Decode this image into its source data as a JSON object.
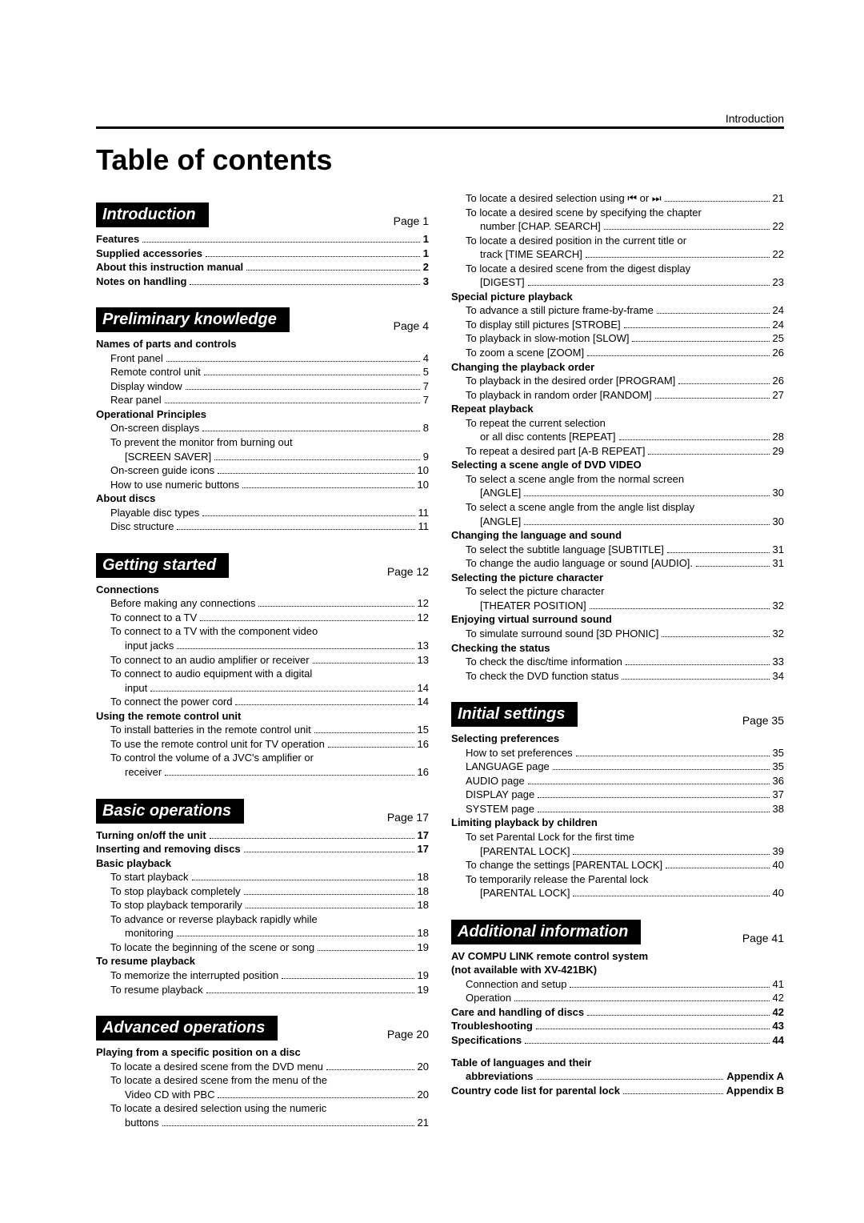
{
  "header_label": "Introduction",
  "title": "Table of contents",
  "left": [
    {
      "type": "section",
      "label": "Introduction",
      "page": "Page 1"
    },
    {
      "type": "line",
      "bold": true,
      "indent": 0,
      "text": "Features",
      "pg": "1"
    },
    {
      "type": "line",
      "bold": true,
      "indent": 0,
      "text": "Supplied accessories",
      "pg": "1"
    },
    {
      "type": "line",
      "bold": true,
      "indent": 0,
      "text": "About this instruction manual",
      "pg": "2"
    },
    {
      "type": "line",
      "bold": true,
      "indent": 0,
      "text": "Notes on handling",
      "pg": "3"
    },
    {
      "type": "gap"
    },
    {
      "type": "section",
      "label": "Preliminary knowledge",
      "page": "Page 4"
    },
    {
      "type": "plain",
      "bold": true,
      "indent": 0,
      "text": "Names of parts and controls"
    },
    {
      "type": "line",
      "indent": 1,
      "text": "Front panel",
      "pg": "4"
    },
    {
      "type": "line",
      "indent": 1,
      "text": "Remote control unit",
      "pg": "5"
    },
    {
      "type": "line",
      "indent": 1,
      "text": "Display window",
      "pg": "7"
    },
    {
      "type": "line",
      "indent": 1,
      "text": "Rear panel",
      "pg": "7"
    },
    {
      "type": "plain",
      "bold": true,
      "indent": 0,
      "text": "Operational Principles"
    },
    {
      "type": "line",
      "indent": 1,
      "text": "On-screen displays",
      "pg": "8"
    },
    {
      "type": "plain",
      "indent": 1,
      "text": "To prevent the monitor from burning out"
    },
    {
      "type": "line",
      "indent": 2,
      "text": "[SCREEN SAVER]",
      "pg": "9"
    },
    {
      "type": "line",
      "indent": 1,
      "text": "On-screen guide icons",
      "pg": "10"
    },
    {
      "type": "line",
      "indent": 1,
      "text": "How to use numeric buttons",
      "pg": "10"
    },
    {
      "type": "plain",
      "bold": true,
      "indent": 0,
      "text": "About discs"
    },
    {
      "type": "line",
      "indent": 1,
      "text": "Playable disc types",
      "pg": "11"
    },
    {
      "type": "line",
      "indent": 1,
      "text": "Disc structure",
      "pg": "11"
    },
    {
      "type": "gap"
    },
    {
      "type": "section",
      "label": "Getting started",
      "page": "Page 12"
    },
    {
      "type": "plain",
      "bold": true,
      "indent": 0,
      "text": "Connections"
    },
    {
      "type": "line",
      "indent": 1,
      "text": "Before making any connections",
      "pg": "12"
    },
    {
      "type": "line",
      "indent": 1,
      "text": "To connect to a TV",
      "pg": "12"
    },
    {
      "type": "plain",
      "indent": 1,
      "text": "To connect to a TV with the component video"
    },
    {
      "type": "line",
      "indent": 2,
      "text": "input jacks",
      "pg": "13"
    },
    {
      "type": "line",
      "indent": 1,
      "text": "To connect to an audio amplifier or receiver",
      "pg": "13"
    },
    {
      "type": "plain",
      "indent": 1,
      "text": "To connect to audio equipment with a digital"
    },
    {
      "type": "line",
      "indent": 2,
      "text": "input",
      "pg": "14"
    },
    {
      "type": "line",
      "indent": 1,
      "text": "To connect the power cord",
      "pg": "14"
    },
    {
      "type": "plain",
      "bold": true,
      "indent": 0,
      "text": "Using the remote control unit"
    },
    {
      "type": "line",
      "indent": 1,
      "text": "To install batteries in the remote control unit",
      "pg": "15"
    },
    {
      "type": "line",
      "indent": 1,
      "text": "To use the remote control unit for TV operation",
      "pg": "16"
    },
    {
      "type": "plain",
      "indent": 1,
      "text": "To control the volume of a JVC's amplifier or"
    },
    {
      "type": "line",
      "indent": 2,
      "text": "receiver",
      "pg": "16"
    },
    {
      "type": "gap"
    },
    {
      "type": "section",
      "label": "Basic operations",
      "page": "Page 17"
    },
    {
      "type": "line",
      "bold": true,
      "indent": 0,
      "text": "Turning on/off the unit",
      "pg": "17"
    },
    {
      "type": "line",
      "bold": true,
      "indent": 0,
      "text": "Inserting and removing discs",
      "pg": "17"
    },
    {
      "type": "plain",
      "bold": true,
      "indent": 0,
      "text": "Basic playback"
    },
    {
      "type": "line",
      "indent": 1,
      "text": "To start playback",
      "pg": "18"
    },
    {
      "type": "line",
      "indent": 1,
      "text": "To stop playback completely",
      "pg": "18"
    },
    {
      "type": "line",
      "indent": 1,
      "text": "To stop playback temporarily",
      "pg": "18"
    },
    {
      "type": "plain",
      "indent": 1,
      "text": "To advance or reverse playback rapidly while"
    },
    {
      "type": "line",
      "indent": 2,
      "text": "monitoring",
      "pg": "18"
    },
    {
      "type": "line",
      "indent": 1,
      "text": "To locate the beginning of the scene or song",
      "pg": "19"
    },
    {
      "type": "plain",
      "bold": true,
      "indent": 0,
      "text": "To resume playback"
    },
    {
      "type": "line",
      "indent": 1,
      "text": "To memorize the interrupted position",
      "pg": "19"
    },
    {
      "type": "line",
      "indent": 1,
      "text": "To resume playback",
      "pg": "19"
    },
    {
      "type": "gap"
    },
    {
      "type": "section",
      "label": "Advanced operations",
      "page": "Page 20"
    },
    {
      "type": "plain",
      "bold": true,
      "indent": 0,
      "text": "Playing from a specific position on a disc"
    },
    {
      "type": "line",
      "indent": 1,
      "text": "To locate a desired scene from the DVD menu",
      "pg": "20"
    },
    {
      "type": "plain",
      "indent": 1,
      "text": "To locate a desired scene from the menu of the"
    },
    {
      "type": "line",
      "indent": 2,
      "text": "Video CD with PBC",
      "pg": "20"
    },
    {
      "type": "plain",
      "indent": 1,
      "text": "To locate a desired selection using the numeric"
    },
    {
      "type": "line",
      "indent": 2,
      "text": "buttons",
      "pg": "21"
    }
  ],
  "right": [
    {
      "type": "line",
      "indent": 1,
      "text": "To locate a desired selection using ⏮ or ⏭",
      "pg": "21"
    },
    {
      "type": "plain",
      "indent": 1,
      "text": "To locate a desired scene by specifying the chapter"
    },
    {
      "type": "line",
      "indent": 2,
      "text": "number [CHAP. SEARCH]",
      "pg": "22"
    },
    {
      "type": "plain",
      "indent": 1,
      "text": "To locate a desired position in the current title or"
    },
    {
      "type": "line",
      "indent": 2,
      "text": "track [TIME SEARCH]",
      "pg": "22"
    },
    {
      "type": "plain",
      "indent": 1,
      "text": "To locate a desired scene from the digest display"
    },
    {
      "type": "line",
      "indent": 2,
      "text": "[DIGEST]",
      "pg": "23"
    },
    {
      "type": "plain",
      "bold": true,
      "indent": 0,
      "text": "Special picture playback"
    },
    {
      "type": "line",
      "indent": 1,
      "text": "To advance a still picture frame-by-frame",
      "pg": "24"
    },
    {
      "type": "line",
      "indent": 1,
      "text": "To display still pictures [STROBE]",
      "pg": "24"
    },
    {
      "type": "line",
      "indent": 1,
      "text": "To playback in slow-motion [SLOW]",
      "pg": "25"
    },
    {
      "type": "line",
      "indent": 1,
      "text": "To zoom a scene [ZOOM]",
      "pg": "26"
    },
    {
      "type": "plain",
      "bold": true,
      "indent": 0,
      "text": "Changing the playback order"
    },
    {
      "type": "line",
      "indent": 1,
      "text": "To playback in the desired order [PROGRAM]",
      "pg": "26"
    },
    {
      "type": "line",
      "indent": 1,
      "text": "To playback in random order [RANDOM]",
      "pg": "27"
    },
    {
      "type": "plain",
      "bold": true,
      "indent": 0,
      "text": "Repeat playback"
    },
    {
      "type": "plain",
      "indent": 1,
      "text": "To repeat the current selection"
    },
    {
      "type": "line",
      "indent": 2,
      "text": "or all disc contents [REPEAT]",
      "pg": "28"
    },
    {
      "type": "line",
      "indent": 1,
      "text": "To repeat a desired part [A-B REPEAT]",
      "pg": "29"
    },
    {
      "type": "plain",
      "bold": true,
      "indent": 0,
      "text": "Selecting a scene angle of DVD VIDEO"
    },
    {
      "type": "plain",
      "indent": 1,
      "text": "To select a scene angle from the normal screen"
    },
    {
      "type": "line",
      "indent": 2,
      "text": "[ANGLE]",
      "pg": "30"
    },
    {
      "type": "plain",
      "indent": 1,
      "text": "To select a scene angle from the angle list display"
    },
    {
      "type": "line",
      "indent": 2,
      "text": "[ANGLE]",
      "pg": "30"
    },
    {
      "type": "plain",
      "bold": true,
      "indent": 0,
      "text": "Changing the language and sound"
    },
    {
      "type": "line",
      "indent": 1,
      "text": "To select the subtitle language [SUBTITLE]",
      "pg": "31"
    },
    {
      "type": "line",
      "indent": 1,
      "text": "To change the audio language or sound [AUDIO].",
      "pg": "31"
    },
    {
      "type": "plain",
      "bold": true,
      "indent": 0,
      "text": "Selecting the picture character"
    },
    {
      "type": "plain",
      "indent": 1,
      "text": "To select the picture character"
    },
    {
      "type": "line",
      "indent": 2,
      "text": "[THEATER POSITION]",
      "pg": "32"
    },
    {
      "type": "plain",
      "bold": true,
      "indent": 0,
      "text": "Enjoying virtual surround sound"
    },
    {
      "type": "line",
      "indent": 1,
      "text": "To simulate surround sound [3D PHONIC]",
      "pg": "32"
    },
    {
      "type": "plain",
      "bold": true,
      "indent": 0,
      "text": "Checking the status"
    },
    {
      "type": "line",
      "indent": 1,
      "text": "To check the disc/time information",
      "pg": "33"
    },
    {
      "type": "line",
      "indent": 1,
      "text": "To check the DVD function status",
      "pg": "34"
    },
    {
      "type": "gap"
    },
    {
      "type": "section",
      "label": "Initial settings",
      "page": "Page 35"
    },
    {
      "type": "plain",
      "bold": true,
      "indent": 0,
      "text": "Selecting preferences"
    },
    {
      "type": "line",
      "indent": 1,
      "text": "How to set preferences",
      "pg": "35"
    },
    {
      "type": "line",
      "indent": 1,
      "text": "LANGUAGE page",
      "pg": "35"
    },
    {
      "type": "line",
      "indent": 1,
      "text": "AUDIO page",
      "pg": "36"
    },
    {
      "type": "line",
      "indent": 1,
      "text": "DISPLAY page",
      "pg": "37"
    },
    {
      "type": "line",
      "indent": 1,
      "text": "SYSTEM page",
      "pg": "38"
    },
    {
      "type": "plain",
      "bold": true,
      "indent": 0,
      "text": "Limiting playback by children"
    },
    {
      "type": "plain",
      "indent": 1,
      "text": "To set Parental Lock for the first time"
    },
    {
      "type": "line",
      "indent": 2,
      "text": "[PARENTAL LOCK]",
      "pg": "39"
    },
    {
      "type": "line",
      "indent": 1,
      "text": "To change the settings [PARENTAL LOCK]",
      "pg": "40"
    },
    {
      "type": "plain",
      "indent": 1,
      "text": "To temporarily release the Parental lock"
    },
    {
      "type": "line",
      "indent": 2,
      "text": "[PARENTAL LOCK]",
      "pg": "40"
    },
    {
      "type": "gap"
    },
    {
      "type": "section",
      "label": "Additional information",
      "page": "Page 41"
    },
    {
      "type": "plain",
      "bold": true,
      "indent": 0,
      "text": "AV COMPU LINK remote control system"
    },
    {
      "type": "plain",
      "bold": true,
      "indent": 0,
      "text": "(not available with XV-421BK)"
    },
    {
      "type": "line",
      "indent": 1,
      "text": "Connection and setup",
      "pg": "41"
    },
    {
      "type": "line",
      "indent": 1,
      "text": "Operation",
      "pg": "42"
    },
    {
      "type": "line",
      "bold": true,
      "indent": 0,
      "text": "Care and handling of discs",
      "pg": "42"
    },
    {
      "type": "line",
      "bold": true,
      "indent": 0,
      "text": "Troubleshooting",
      "pg": "43"
    },
    {
      "type": "line",
      "bold": true,
      "indent": 0,
      "text": "Specifications",
      "pg": "44"
    },
    {
      "type": "gap"
    },
    {
      "type": "plain",
      "bold": true,
      "indent": 0,
      "text": "Table of languages and their"
    },
    {
      "type": "line",
      "bold": true,
      "indent": 1,
      "text": "abbreviations",
      "pg": "Appendix A"
    },
    {
      "type": "line",
      "bold": true,
      "indent": 0,
      "text": "Country code list for parental lock",
      "pg": "Appendix B"
    }
  ]
}
